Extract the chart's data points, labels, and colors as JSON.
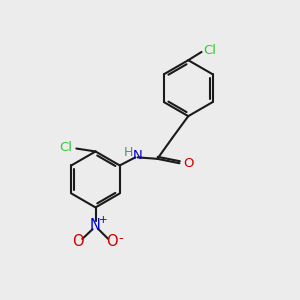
{
  "background_color": "#ececec",
  "bond_color": "#1a1a1a",
  "bond_width": 1.5,
  "cl_color": "#33cc33",
  "o_color": "#cc0000",
  "n_color": "#0000cc",
  "h_color": "#558888",
  "font_size": 9.5,
  "figsize": [
    3.0,
    3.0
  ],
  "dpi": 100,
  "xlim": [
    0,
    10
  ],
  "ylim": [
    0,
    10
  ]
}
